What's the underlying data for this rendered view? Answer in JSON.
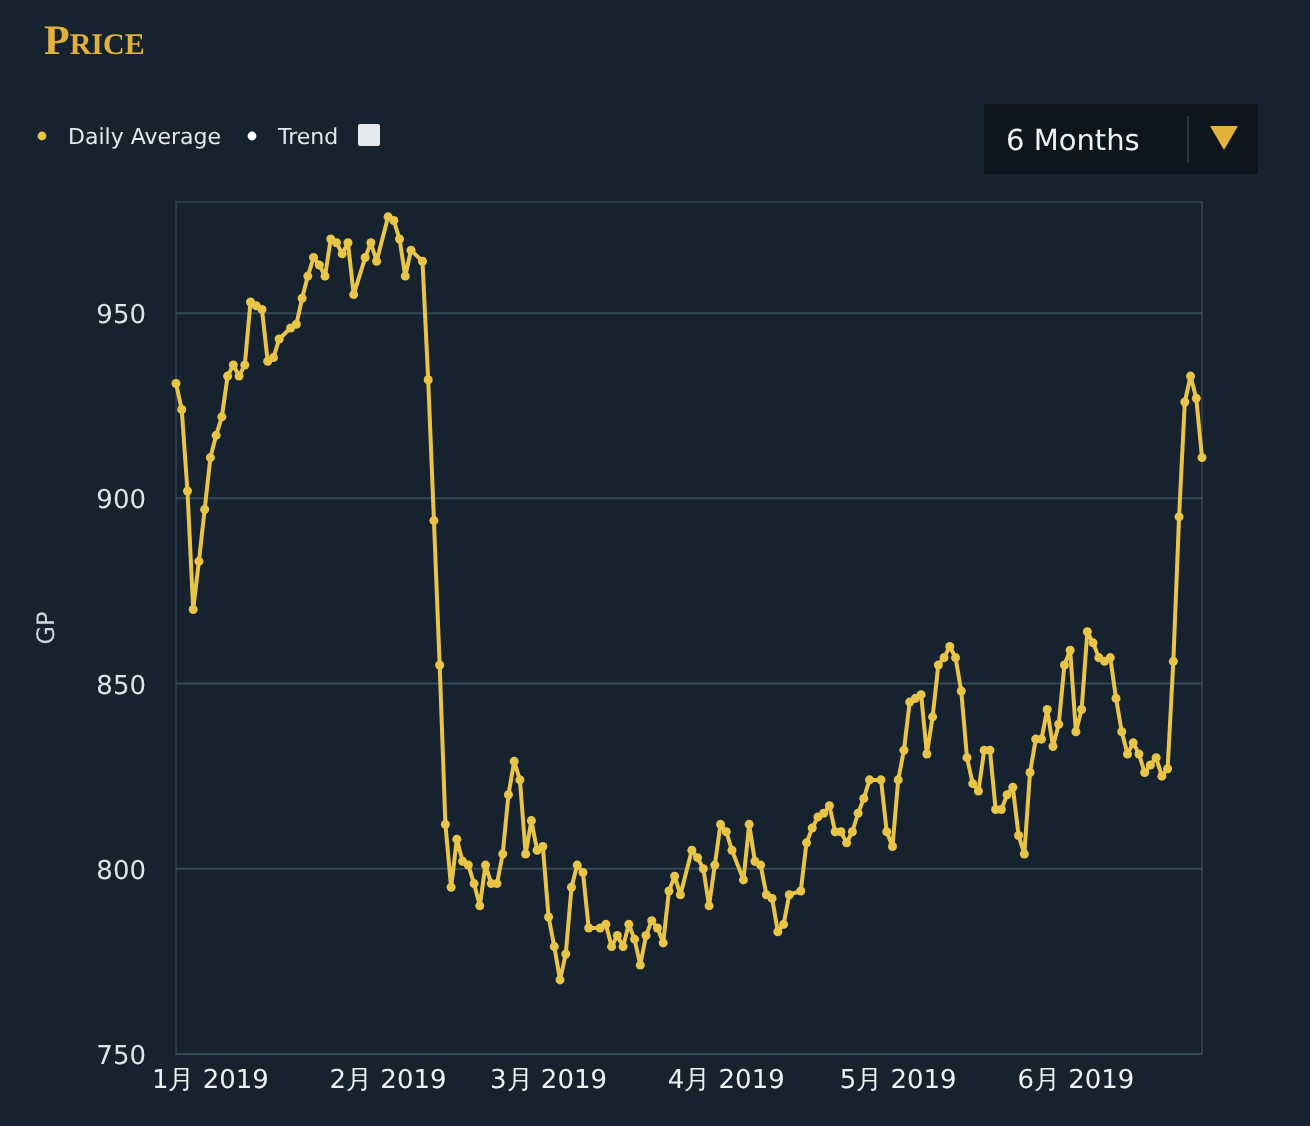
{
  "chart_data": {
    "type": "line",
    "title": "Price",
    "ylabel": "GP",
    "legend": "top left",
    "grid": "y",
    "marker": "circle",
    "annotations": [
      "6 Months"
    ],
    "xlim": [
      "2018-12-26",
      "2019-06-23"
    ],
    "ylim": [
      750,
      980
    ],
    "xticks": [
      {
        "value": "2019-01-01",
        "label": "1月 2019"
      },
      {
        "value": "2019-02-01",
        "label": "2月 2019"
      },
      {
        "value": "2019-03-01",
        "label": "3月 2019"
      },
      {
        "value": "2019-04-01",
        "label": "4月 2019"
      },
      {
        "value": "2019-05-01",
        "label": "5月 2019"
      },
      {
        "value": "2019-06-01",
        "label": "6月 2019"
      }
    ],
    "yticks": [
      750,
      800,
      850,
      900,
      950
    ],
    "x": [
      "2018-12-26",
      "2018-12-27",
      "2018-12-28",
      "2018-12-29",
      "2018-12-30",
      "2018-12-31",
      "2019-01-01",
      "2019-01-02",
      "2019-01-03",
      "2019-01-04",
      "2019-01-05",
      "2019-01-06",
      "2019-01-07",
      "2019-01-08",
      "2019-01-09",
      "2019-01-10",
      "2019-01-11",
      "2019-01-12",
      "2019-01-13",
      "2019-01-15",
      "2019-01-16",
      "2019-01-17",
      "2019-01-18",
      "2019-01-19",
      "2019-01-20",
      "2019-01-21",
      "2019-01-22",
      "2019-01-23",
      "2019-01-24",
      "2019-01-25",
      "2019-01-26",
      "2019-01-28",
      "2019-01-29",
      "2019-01-30",
      "2019-02-01",
      "2019-02-02",
      "2019-02-03",
      "2019-02-04",
      "2019-02-05",
      "2019-02-07",
      "2019-02-08",
      "2019-02-09",
      "2019-02-10",
      "2019-02-11",
      "2019-02-12",
      "2019-02-13",
      "2019-02-14",
      "2019-02-15",
      "2019-02-16",
      "2019-02-17",
      "2019-02-18",
      "2019-02-19",
      "2019-02-20",
      "2019-02-21",
      "2019-02-22",
      "2019-02-23",
      "2019-02-24",
      "2019-02-25",
      "2019-02-26",
      "2019-02-27",
      "2019-02-28",
      "2019-03-01",
      "2019-03-02",
      "2019-03-03",
      "2019-03-04",
      "2019-03-05",
      "2019-03-06",
      "2019-03-07",
      "2019-03-08",
      "2019-03-10",
      "2019-03-11",
      "2019-03-12",
      "2019-03-13",
      "2019-03-14",
      "2019-03-15",
      "2019-03-16",
      "2019-03-17",
      "2019-03-18",
      "2019-03-19",
      "2019-03-20",
      "2019-03-21",
      "2019-03-22",
      "2019-03-23",
      "2019-03-24",
      "2019-03-26",
      "2019-03-27",
      "2019-03-28",
      "2019-03-29",
      "2019-03-30",
      "2019-03-31",
      "2019-04-01",
      "2019-04-02",
      "2019-04-04",
      "2019-04-05",
      "2019-04-06",
      "2019-04-07",
      "2019-04-08",
      "2019-04-09",
      "2019-04-10",
      "2019-04-11",
      "2019-04-12",
      "2019-04-14",
      "2019-04-15",
      "2019-04-16",
      "2019-04-17",
      "2019-04-18",
      "2019-04-19",
      "2019-04-20",
      "2019-04-21",
      "2019-04-22",
      "2019-04-23",
      "2019-04-24",
      "2019-04-25",
      "2019-04-26",
      "2019-04-28",
      "2019-04-29",
      "2019-04-30",
      "2019-05-01",
      "2019-05-02",
      "2019-05-03",
      "2019-05-04",
      "2019-05-05",
      "2019-05-06",
      "2019-05-07",
      "2019-05-08",
      "2019-05-09",
      "2019-05-10",
      "2019-05-11",
      "2019-05-12",
      "2019-05-13",
      "2019-05-14",
      "2019-05-15",
      "2019-05-16",
      "2019-05-17",
      "2019-05-18",
      "2019-05-19",
      "2019-05-20",
      "2019-05-21",
      "2019-05-22",
      "2019-05-23",
      "2019-05-24",
      "2019-05-25",
      "2019-05-26",
      "2019-05-27",
      "2019-05-28",
      "2019-05-29",
      "2019-05-30",
      "2019-05-31",
      "2019-06-01",
      "2019-06-02",
      "2019-06-03",
      "2019-06-04",
      "2019-06-05",
      "2019-06-06",
      "2019-06-07",
      "2019-06-08",
      "2019-06-09",
      "2019-06-10",
      "2019-06-11",
      "2019-06-12",
      "2019-06-13",
      "2019-06-14",
      "2019-06-15",
      "2019-06-16",
      "2019-06-17",
      "2019-06-18",
      "2019-06-19",
      "2019-06-20",
      "2019-06-21",
      "2019-06-22",
      "2019-06-23"
    ],
    "series": [
      {
        "name": "Daily Average",
        "color": "#e8c547",
        "values": [
          931,
          924,
          902,
          870,
          883,
          897,
          911,
          917,
          922,
          933,
          936,
          933,
          936,
          953,
          952,
          951,
          937,
          938,
          943,
          946,
          947,
          954,
          960,
          965,
          963,
          960,
          970,
          969,
          966,
          969,
          955,
          965,
          969,
          964,
          976,
          975,
          970,
          960,
          967,
          964,
          932,
          894,
          855,
          812,
          795,
          808,
          802,
          801,
          796,
          790,
          801,
          796,
          796,
          804,
          820,
          829,
          824,
          804,
          813,
          805,
          806,
          787,
          779,
          770,
          777,
          795,
          801,
          799,
          784,
          784,
          785,
          779,
          782,
          779,
          785,
          781,
          774,
          782,
          786,
          784,
          780,
          794,
          798,
          793,
          805,
          803,
          800,
          790,
          801,
          812,
          810,
          805,
          797,
          812,
          802,
          801,
          793,
          792,
          783,
          785,
          793,
          794,
          807,
          811,
          814,
          815,
          817,
          810,
          810,
          807,
          810,
          815,
          819,
          824,
          824,
          810,
          806,
          824,
          832,
          845,
          846,
          847,
          831,
          841,
          855,
          857,
          860,
          857,
          848,
          830,
          823,
          821,
          832,
          832,
          816,
          816,
          820,
          822,
          809,
          804,
          826,
          835,
          835,
          843,
          833,
          839,
          855,
          859,
          837,
          843,
          864,
          861,
          857,
          856,
          857,
          846,
          837,
          831,
          834,
          831,
          826,
          828,
          830,
          825,
          827,
          856,
          895,
          926,
          933,
          927,
          911
        ]
      },
      {
        "name": "Trend",
        "color": "#ffffff",
        "values": [
          null,
          null,
          null,
          null,
          null,
          null,
          null,
          null,
          null,
          null,
          null,
          null,
          null,
          null,
          null,
          null,
          null,
          null,
          null,
          null,
          null,
          null,
          null,
          null,
          null,
          null,
          null,
          null,
          null,
          null,
          null,
          null,
          null,
          null,
          null,
          null,
          null,
          null,
          null,
          null,
          null,
          null,
          null,
          null,
          null,
          null,
          null,
          null,
          null,
          null,
          null,
          null,
          null,
          null,
          null,
          null,
          null,
          null,
          null,
          null,
          null,
          null,
          null,
          null,
          null,
          null,
          null,
          null,
          null,
          null,
          null,
          null,
          null,
          null,
          null,
          null,
          null,
          null,
          null,
          null,
          null,
          null,
          null,
          null,
          null,
          null,
          null,
          null,
          null,
          null,
          null,
          null,
          null,
          null,
          null,
          null,
          null,
          null,
          null,
          null,
          null,
          null,
          null,
          null,
          null,
          null,
          null,
          null,
          null,
          null,
          null,
          null,
          null,
          null,
          null,
          null,
          null,
          null,
          null,
          null,
          null,
          null,
          null,
          null,
          null,
          null,
          null,
          null,
          null,
          null,
          null,
          null,
          null,
          null,
          null,
          null,
          null,
          null,
          null,
          null,
          null,
          null,
          null,
          null,
          null,
          null,
          null,
          null,
          null,
          null,
          null,
          null,
          null,
          null,
          null,
          null,
          null,
          null,
          null,
          null,
          null,
          null,
          null,
          null,
          null,
          null,
          null,
          null,
          null,
          null,
          null
        ]
      }
    ]
  }
}
